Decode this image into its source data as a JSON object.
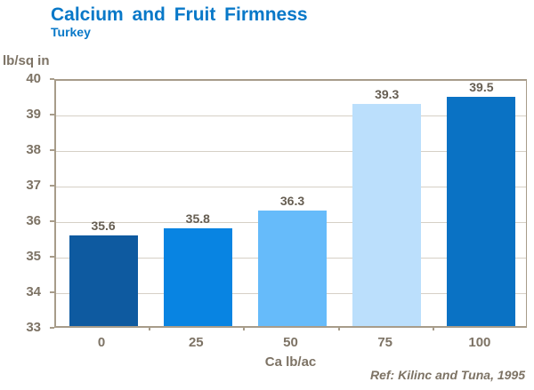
{
  "header": {
    "title": "Calcium and Fruit Firmness",
    "subtitle": "Turkey"
  },
  "chart_data": {
    "type": "bar",
    "title": "Calcium and Fruit Firmness",
    "subtitle": "Turkey",
    "categories": [
      "0",
      "25",
      "50",
      "75",
      "100"
    ],
    "values": [
      35.6,
      35.8,
      36.3,
      39.3,
      39.5
    ],
    "data_labels": [
      "35.6",
      "35.8",
      "36.3",
      "39.3",
      "39.5"
    ],
    "bar_colors": [
      "#0e5aa0",
      "#0884e2",
      "#66bbfa",
      "#bbdffc",
      "#0a72c4"
    ],
    "xlabel": "Ca lb/ac",
    "ylabel": "lb/sq in",
    "ylim": [
      33,
      40
    ],
    "yticks": [
      33,
      34,
      35,
      36,
      37,
      38,
      39,
      40
    ],
    "grid": true,
    "legend_position": "none"
  },
  "footer": {
    "reference": "Ref: Kilinc and Tuna, 1995"
  },
  "colors": {
    "title_blue": "#0878c8",
    "axis_text": "#7d7365",
    "data_label": "#665e52",
    "frame": "#a79c8a",
    "gridline": "#d6d0c6",
    "background": "#ffffff"
  }
}
